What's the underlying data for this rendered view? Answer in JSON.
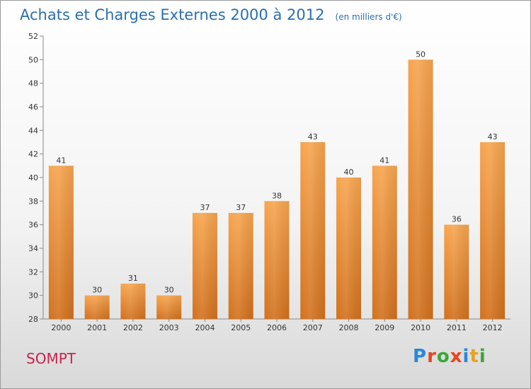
{
  "header": {
    "title": "Achats et Charges Externes 2000 à 2012",
    "subtitle": "(en milliers d'€)"
  },
  "footer": {
    "place": "SOMPT",
    "logo_text": "Proxiti"
  },
  "colors": {
    "title": "#2a6fb0",
    "place": "#c8234b",
    "bar_top": "#f7a54f",
    "bar_bottom": "#d2711e",
    "logo_letters": [
      "#2a88d8",
      "#e8441e",
      "#3aa83a",
      "#e8441e",
      "#2a88d8",
      "#e8a21e",
      "#3aa83a"
    ]
  },
  "chart_data": {
    "type": "bar",
    "categories": [
      "2000",
      "2001",
      "2002",
      "2003",
      "2004",
      "2005",
      "2006",
      "2007",
      "2008",
      "2009",
      "2010",
      "2011",
      "2012"
    ],
    "values": [
      41,
      30,
      31,
      30,
      37,
      37,
      38,
      43,
      40,
      41,
      50,
      36,
      43
    ],
    "title": "Achats et Charges Externes 2000 à 2012",
    "subtitle": "(en milliers d'€)",
    "ylim": [
      28,
      52
    ],
    "yticks": [
      28,
      30,
      32,
      34,
      36,
      38,
      40,
      42,
      44,
      46,
      48,
      50,
      52
    ],
    "grid": false,
    "data_labels": true
  }
}
